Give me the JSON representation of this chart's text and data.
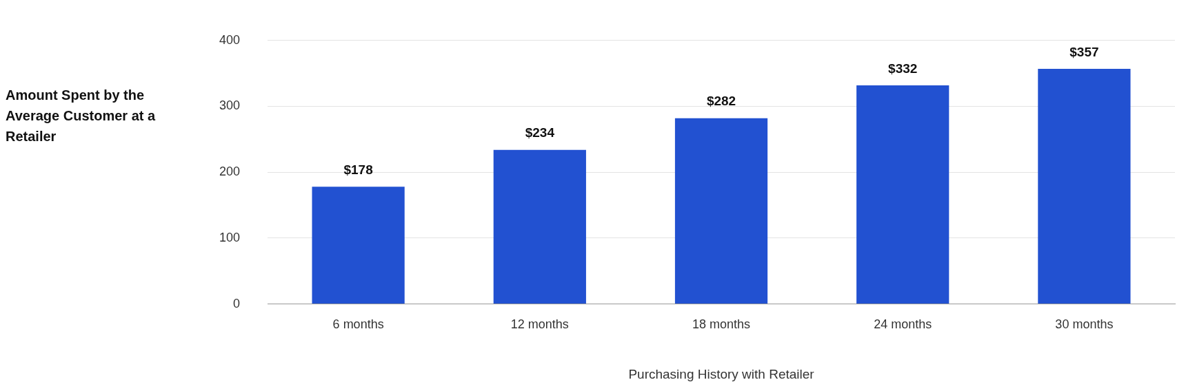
{
  "chart_data": {
    "type": "bar",
    "ylabel": "Amount Spent by the Average Customer at a Retailer",
    "xlabel": "Purchasing History with Retailer",
    "categories": [
      "6 months",
      "12 months",
      "18 months",
      "24 months",
      "30 months"
    ],
    "values": [
      178,
      234,
      282,
      332,
      357
    ],
    "value_labels": [
      "$178",
      "$234",
      "$282",
      "$332",
      "$357"
    ],
    "color": "#2251d1",
    "ylim": [
      0,
      400
    ],
    "yticks": [
      0,
      100,
      200,
      300,
      400
    ],
    "grid": "y",
    "legend": false
  }
}
